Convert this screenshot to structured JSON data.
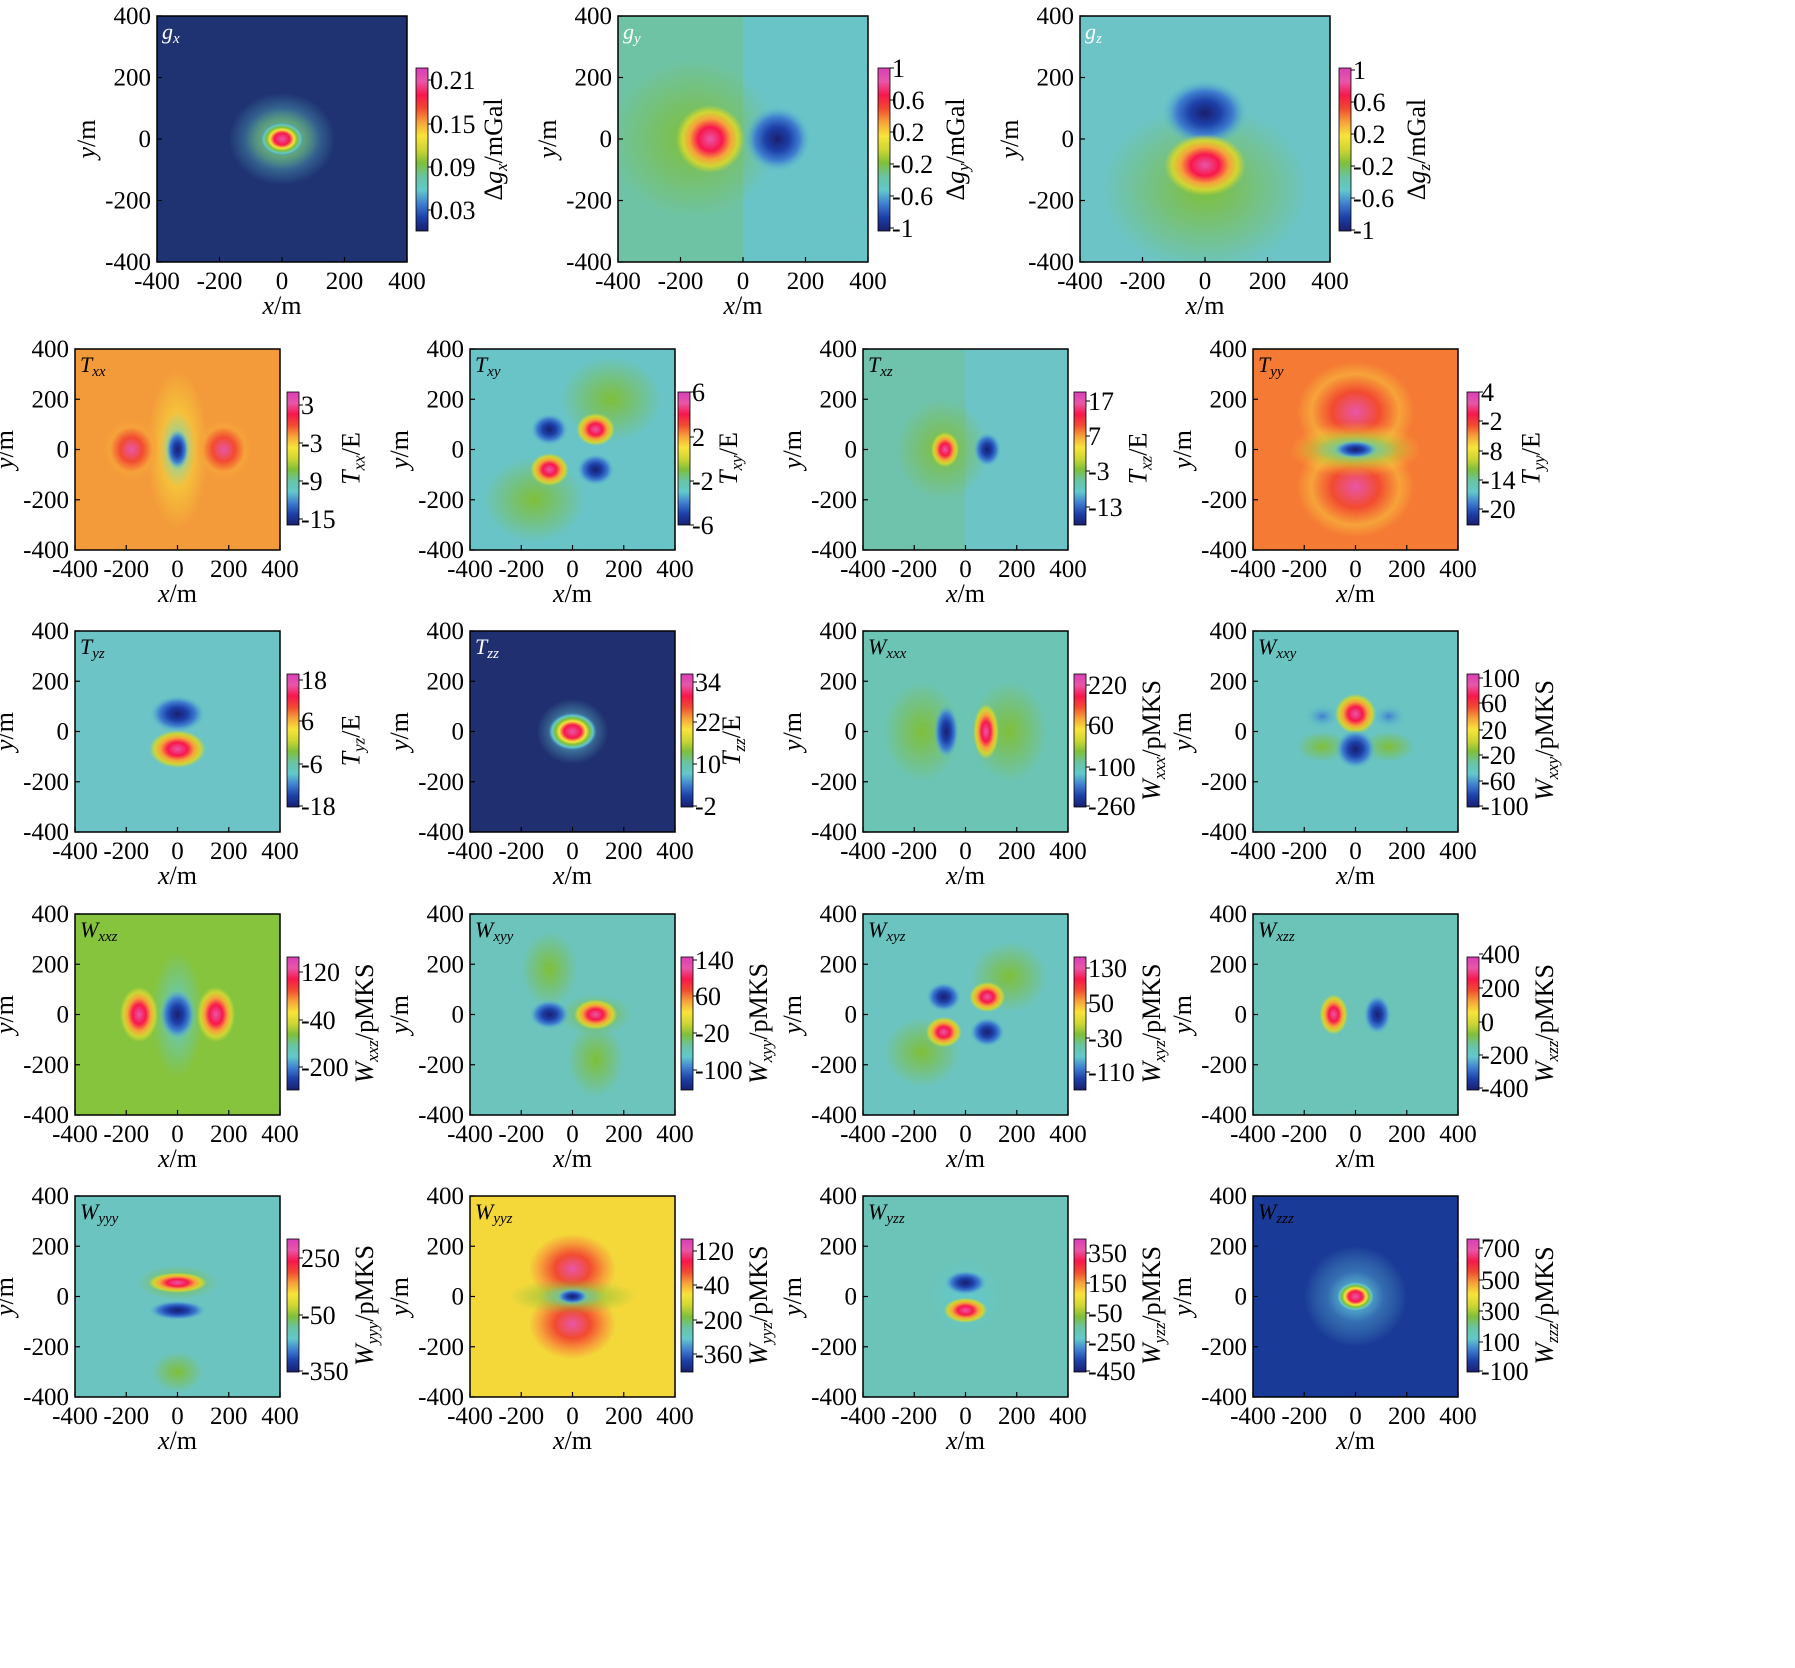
{
  "colormap": [
    "#1a1f6e",
    "#1c3fa8",
    "#3f7fd0",
    "#62c8cc",
    "#69c4a3",
    "#7fbf3a",
    "#cfd633",
    "#f8e43a",
    "#f6a33a",
    "#f24b30",
    "#f8174c",
    "#e856a8",
    "#d83fb8"
  ],
  "chart_data": [
    {
      "type": "heatmap",
      "component": "gx",
      "title": "gx",
      "title_color": "#ffffff",
      "colorbar_label": "Δgx/mGal",
      "colorbar_ticks": [
        "0.21",
        "0.15",
        "0.09",
        "0.03"
      ],
      "xlabel": "x/m",
      "ylabel": "y/m",
      "xlim": [
        -400,
        400
      ],
      "ylim": [
        -400,
        400
      ],
      "x_ticks": [
        "-400",
        "-200",
        "0",
        "200",
        "400"
      ],
      "y_ticks": [
        "400",
        "200",
        "0",
        "-200",
        "-400"
      ]
    },
    {
      "type": "heatmap",
      "component": "gy",
      "title": "gy",
      "title_color": "#ffffff",
      "colorbar_label": "Δgy/mGal",
      "colorbar_ticks": [
        "1",
        "0.6",
        "0.2",
        "-0.2",
        "-0.6",
        "-1"
      ],
      "xlabel": "x/m",
      "ylabel": "y/m",
      "xlim": [
        -400,
        400
      ],
      "ylim": [
        -400,
        400
      ],
      "x_ticks": [
        "-400",
        "-200",
        "0",
        "200",
        "400"
      ],
      "y_ticks": [
        "400",
        "200",
        "0",
        "-200",
        "-400"
      ]
    },
    {
      "type": "heatmap",
      "component": "gz",
      "title": "gz",
      "title_color": "#ffffff",
      "colorbar_label": "Δgz/mGal",
      "colorbar_ticks": [
        "1",
        "0.6",
        "0.2",
        "-0.2",
        "-0.6",
        "-1"
      ],
      "xlabel": "x/m",
      "ylabel": "y/m",
      "xlim": [
        -400,
        400
      ],
      "ylim": [
        -400,
        400
      ],
      "x_ticks": [
        "-400",
        "-200",
        "0",
        "200",
        "400"
      ],
      "y_ticks": [
        "400",
        "200",
        "0",
        "-200",
        "-400"
      ]
    },
    {
      "type": "heatmap",
      "component": "Txx",
      "title": "Txx",
      "title_color": "#000000",
      "colorbar_label": "Txx/E",
      "colorbar_ticks": [
        "3",
        "-3",
        "-9",
        "-15"
      ],
      "xlabel": "x/m",
      "ylabel": "y/m",
      "xlim": [
        -400,
        400
      ],
      "ylim": [
        -400,
        400
      ],
      "x_ticks": [
        "-400",
        "-200",
        "0",
        "200",
        "400"
      ],
      "y_ticks": [
        "400",
        "200",
        "0",
        "-200",
        "-400"
      ]
    },
    {
      "type": "heatmap",
      "component": "Txy",
      "title": "Txy",
      "title_color": "#000000",
      "colorbar_label": "Txy/E",
      "colorbar_ticks": [
        "6",
        "2",
        "-2",
        "-6"
      ],
      "xlabel": "x/m",
      "ylabel": "y/m",
      "xlim": [
        -400,
        400
      ],
      "ylim": [
        -400,
        400
      ],
      "x_ticks": [
        "-400",
        "-200",
        "0",
        "200",
        "400"
      ],
      "y_ticks": [
        "400",
        "200",
        "0",
        "-200",
        "-400"
      ]
    },
    {
      "type": "heatmap",
      "component": "Txz",
      "title": "Txz",
      "title_color": "#000000",
      "colorbar_label": "Txz/E",
      "colorbar_ticks": [
        "17",
        "7",
        "-3",
        "-13"
      ],
      "xlabel": "x/m",
      "ylabel": "y/m",
      "xlim": [
        -400,
        400
      ],
      "ylim": [
        -400,
        400
      ],
      "x_ticks": [
        "-400",
        "-200",
        "0",
        "200",
        "400"
      ],
      "y_ticks": [
        "400",
        "200",
        "0",
        "-200",
        "-400"
      ]
    },
    {
      "type": "heatmap",
      "component": "Tyy",
      "title": "Tyy",
      "title_color": "#000000",
      "colorbar_label": "Tyy/E",
      "colorbar_ticks": [
        "4",
        "-2",
        "-8",
        "-14",
        "-20"
      ],
      "xlabel": "x/m",
      "ylabel": "y/m",
      "xlim": [
        -400,
        400
      ],
      "ylim": [
        -400,
        400
      ],
      "x_ticks": [
        "-400",
        "-200",
        "0",
        "200",
        "400"
      ],
      "y_ticks": [
        "400",
        "200",
        "0",
        "-200",
        "-400"
      ]
    },
    {
      "type": "heatmap",
      "component": "Tyz",
      "title": "Tyz",
      "title_color": "#000000",
      "colorbar_label": "Tyz/E",
      "colorbar_ticks": [
        "18",
        "6",
        "-6",
        "-18"
      ],
      "xlabel": "x/m",
      "ylabel": "y/m",
      "xlim": [
        -400,
        400
      ],
      "ylim": [
        -400,
        400
      ],
      "x_ticks": [
        "-400",
        "-200",
        "0",
        "200",
        "400"
      ],
      "y_ticks": [
        "400",
        "200",
        "0",
        "-200",
        "-400"
      ]
    },
    {
      "type": "heatmap",
      "component": "Tzz",
      "title": "Tzz",
      "title_color": "#ffffff",
      "colorbar_label": "Tzz/E",
      "colorbar_ticks": [
        "34",
        "22",
        "10",
        "-2"
      ],
      "xlabel": "x/m",
      "ylabel": "y/m",
      "xlim": [
        -400,
        400
      ],
      "ylim": [
        -400,
        400
      ],
      "x_ticks": [
        "-400",
        "-200",
        "0",
        "200",
        "400"
      ],
      "y_ticks": [
        "400",
        "200",
        "0",
        "-200",
        "-400"
      ]
    },
    {
      "type": "heatmap",
      "component": "Wxxx",
      "title": "Wxxx",
      "title_color": "#000000",
      "colorbar_label": "Wxxx/pMKS",
      "colorbar_ticks": [
        "220",
        "60",
        "-100",
        "-260"
      ],
      "xlabel": "x/m",
      "ylabel": "y/m",
      "xlim": [
        -400,
        400
      ],
      "ylim": [
        -400,
        400
      ],
      "x_ticks": [
        "-400",
        "-200",
        "0",
        "200",
        "400"
      ],
      "y_ticks": [
        "400",
        "200",
        "0",
        "-200",
        "-400"
      ]
    },
    {
      "type": "heatmap",
      "component": "Wxxy",
      "title": "Wxxy",
      "title_color": "#000000",
      "colorbar_label": "Wxxy/pMKS",
      "colorbar_ticks": [
        "100",
        "60",
        "20",
        "-20",
        "-60",
        "-100"
      ],
      "xlabel": "x/m",
      "ylabel": "y/m",
      "xlim": [
        -400,
        400
      ],
      "ylim": [
        -400,
        400
      ],
      "x_ticks": [
        "-400",
        "-200",
        "0",
        "200",
        "400"
      ],
      "y_ticks": [
        "400",
        "200",
        "0",
        "-200",
        "-400"
      ]
    },
    {
      "type": "heatmap",
      "component": "Wxxz",
      "title": "Wxxz",
      "title_color": "#000000",
      "colorbar_label": "Wxxz/pMKS",
      "colorbar_ticks": [
        "120",
        "-40",
        "-200"
      ],
      "xlabel": "x/m",
      "ylabel": "y/m",
      "xlim": [
        -400,
        400
      ],
      "ylim": [
        -400,
        400
      ],
      "x_ticks": [
        "-400",
        "-200",
        "0",
        "200",
        "400"
      ],
      "y_ticks": [
        "400",
        "200",
        "0",
        "-200",
        "-400"
      ]
    },
    {
      "type": "heatmap",
      "component": "Wxyy",
      "title": "Wxyy",
      "title_color": "#000000",
      "colorbar_label": "Wxyy/pMKS",
      "colorbar_ticks": [
        "140",
        "60",
        "-20",
        "-100"
      ],
      "xlabel": "x/m",
      "ylabel": "y/m",
      "xlim": [
        -400,
        400
      ],
      "ylim": [
        -400,
        400
      ],
      "x_ticks": [
        "-400",
        "-200",
        "0",
        "200",
        "400"
      ],
      "y_ticks": [
        "400",
        "200",
        "0",
        "-200",
        "-400"
      ]
    },
    {
      "type": "heatmap",
      "component": "Wxyz",
      "title": "Wxyz",
      "title_color": "#000000",
      "colorbar_label": "Wxyz/pMKS",
      "colorbar_ticks": [
        "130",
        "50",
        "-30",
        "-110"
      ],
      "xlabel": "x/m",
      "ylabel": "y/m",
      "xlim": [
        -400,
        400
      ],
      "ylim": [
        -400,
        400
      ],
      "x_ticks": [
        "-400",
        "-200",
        "0",
        "200",
        "400"
      ],
      "y_ticks": [
        "400",
        "200",
        "0",
        "-200",
        "-400"
      ]
    },
    {
      "type": "heatmap",
      "component": "Wxzz",
      "title": "Wxzz",
      "title_color": "#000000",
      "colorbar_label": "Wxzz/pMKS",
      "colorbar_ticks": [
        "400",
        "200",
        "0",
        "-200",
        "-400"
      ],
      "xlabel": "x/m",
      "ylabel": "y/m",
      "xlim": [
        -400,
        400
      ],
      "ylim": [
        -400,
        400
      ],
      "x_ticks": [
        "-400",
        "-200",
        "0",
        "200",
        "400"
      ],
      "y_ticks": [
        "400",
        "200",
        "0",
        "-200",
        "-400"
      ]
    },
    {
      "type": "heatmap",
      "component": "Wyyy",
      "title": "Wyyy",
      "title_color": "#000000",
      "colorbar_label": "Wyyy/pMKS",
      "colorbar_ticks": [
        "250",
        "-50",
        "-350"
      ],
      "xlabel": "x/m",
      "ylabel": "y/m",
      "xlim": [
        -400,
        400
      ],
      "ylim": [
        -400,
        400
      ],
      "x_ticks": [
        "-400",
        "-200",
        "0",
        "200",
        "400"
      ],
      "y_ticks": [
        "400",
        "200",
        "0",
        "-200",
        "-400"
      ]
    },
    {
      "type": "heatmap",
      "component": "Wyyz",
      "title": "Wyyz",
      "title_color": "#000000",
      "colorbar_label": "Wyyz/pMKS",
      "colorbar_ticks": [
        "120",
        "-40",
        "-200",
        "-360"
      ],
      "xlabel": "x/m",
      "ylabel": "y/m",
      "xlim": [
        -400,
        400
      ],
      "ylim": [
        -400,
        400
      ],
      "x_ticks": [
        "-400",
        "-200",
        "0",
        "200",
        "400"
      ],
      "y_ticks": [
        "400",
        "200",
        "0",
        "-200",
        "-400"
      ]
    },
    {
      "type": "heatmap",
      "component": "Wyzz",
      "title": "Wyzz",
      "title_color": "#000000",
      "colorbar_label": "Wyzz/pMKS",
      "colorbar_ticks": [
        "350",
        "150",
        "-50",
        "-250",
        "-450"
      ],
      "xlabel": "x/m",
      "ylabel": "y/m",
      "xlim": [
        -400,
        400
      ],
      "ylim": [
        -400,
        400
      ],
      "x_ticks": [
        "-400",
        "-200",
        "0",
        "200",
        "400"
      ],
      "y_ticks": [
        "400",
        "200",
        "0",
        "-200",
        "-400"
      ]
    },
    {
      "type": "heatmap",
      "component": "Wzzz",
      "title": "Wzzz",
      "title_color": "#000000",
      "colorbar_label": "Wzzz/pMKS",
      "colorbar_ticks": [
        "700",
        "500",
        "300",
        "100",
        "-100"
      ],
      "xlabel": "x/m",
      "ylabel": "y/m",
      "xlim": [
        -400,
        400
      ],
      "ylim": [
        -400,
        400
      ],
      "x_ticks": [
        "-400",
        "-200",
        "0",
        "200",
        "400"
      ],
      "y_ticks": [
        "400",
        "200",
        "0",
        "-200",
        "-400"
      ]
    }
  ]
}
